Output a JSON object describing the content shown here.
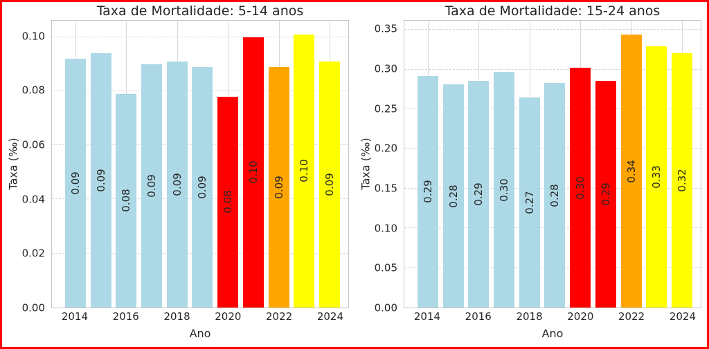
{
  "figure": {
    "border_color": "#ff0000",
    "background_color": "#ffffff",
    "text_color": "#262626"
  },
  "chart_data": [
    {
      "type": "bar",
      "title": "Taxa de Mortalidade: 5-14 anos",
      "xlabel": "Ano",
      "ylabel": "Taxa (‰)",
      "categories": [
        "2014",
        "2015",
        "2016",
        "2017",
        "2018",
        "2019",
        "2020",
        "2021",
        "2022",
        "2023",
        "2024"
      ],
      "values": [
        0.092,
        0.094,
        0.079,
        0.09,
        0.091,
        0.089,
        0.078,
        0.1,
        0.089,
        0.101,
        0.091
      ],
      "bar_labels": [
        "0.09",
        "0.09",
        "0.08",
        "0.09",
        "0.09",
        "0.09",
        "0.08",
        "0.10",
        "0.09",
        "0.10",
        "0.09"
      ],
      "bar_colors": [
        "#ADD8E6",
        "#ADD8E6",
        "#ADD8E6",
        "#ADD8E6",
        "#ADD8E6",
        "#ADD8E6",
        "#FF0000",
        "#FF0000",
        "#FFA500",
        "#FFFF00",
        "#FFFF00"
      ],
      "ylim": [
        0,
        0.106
      ],
      "yticks": [
        0,
        0.02,
        0.04,
        0.06,
        0.08,
        0.1
      ],
      "ytick_labels": [
        "0.00",
        "0.02",
        "0.04",
        "0.06",
        "0.08",
        "0.10"
      ],
      "xtick_indices": [
        0,
        2,
        4,
        6,
        8,
        10
      ],
      "xtick_labels": [
        "2014",
        "2016",
        "2018",
        "2020",
        "2022",
        "2024"
      ],
      "grid": {
        "horizontal": "dashed",
        "vertical": "solid-at-labeled-ticks"
      },
      "legend": null
    },
    {
      "type": "bar",
      "title": "Taxa de Mortalidade: 15-24 anos",
      "xlabel": "Ano",
      "ylabel": "Taxa (‰)",
      "categories": [
        "2014",
        "2015",
        "2016",
        "2017",
        "2018",
        "2019",
        "2020",
        "2021",
        "2022",
        "2023",
        "2024"
      ],
      "values": [
        0.292,
        0.281,
        0.286,
        0.297,
        0.265,
        0.283,
        0.302,
        0.286,
        0.344,
        0.329,
        0.321
      ],
      "bar_labels": [
        "0.29",
        "0.28",
        "0.29",
        "0.30",
        "0.27",
        "0.28",
        "0.30",
        "0.29",
        "0.34",
        "0.33",
        "0.32"
      ],
      "bar_colors": [
        "#ADD8E6",
        "#ADD8E6",
        "#ADD8E6",
        "#ADD8E6",
        "#ADD8E6",
        "#ADD8E6",
        "#FF0000",
        "#FF0000",
        "#FFA500",
        "#FFFF00",
        "#FFFF00"
      ],
      "ylim": [
        0,
        0.3615
      ],
      "yticks": [
        0,
        0.05,
        0.1,
        0.15,
        0.2,
        0.25,
        0.3,
        0.35
      ],
      "ytick_labels": [
        "0.00",
        "0.05",
        "0.10",
        "0.15",
        "0.20",
        "0.25",
        "0.30",
        "0.35"
      ],
      "xtick_indices": [
        0,
        2,
        4,
        6,
        8,
        10
      ],
      "xtick_labels": [
        "2014",
        "2016",
        "2018",
        "2020",
        "2022",
        "2024"
      ],
      "grid": {
        "horizontal": "dashed",
        "vertical": "solid-at-labeled-ticks"
      },
      "legend": null
    }
  ]
}
